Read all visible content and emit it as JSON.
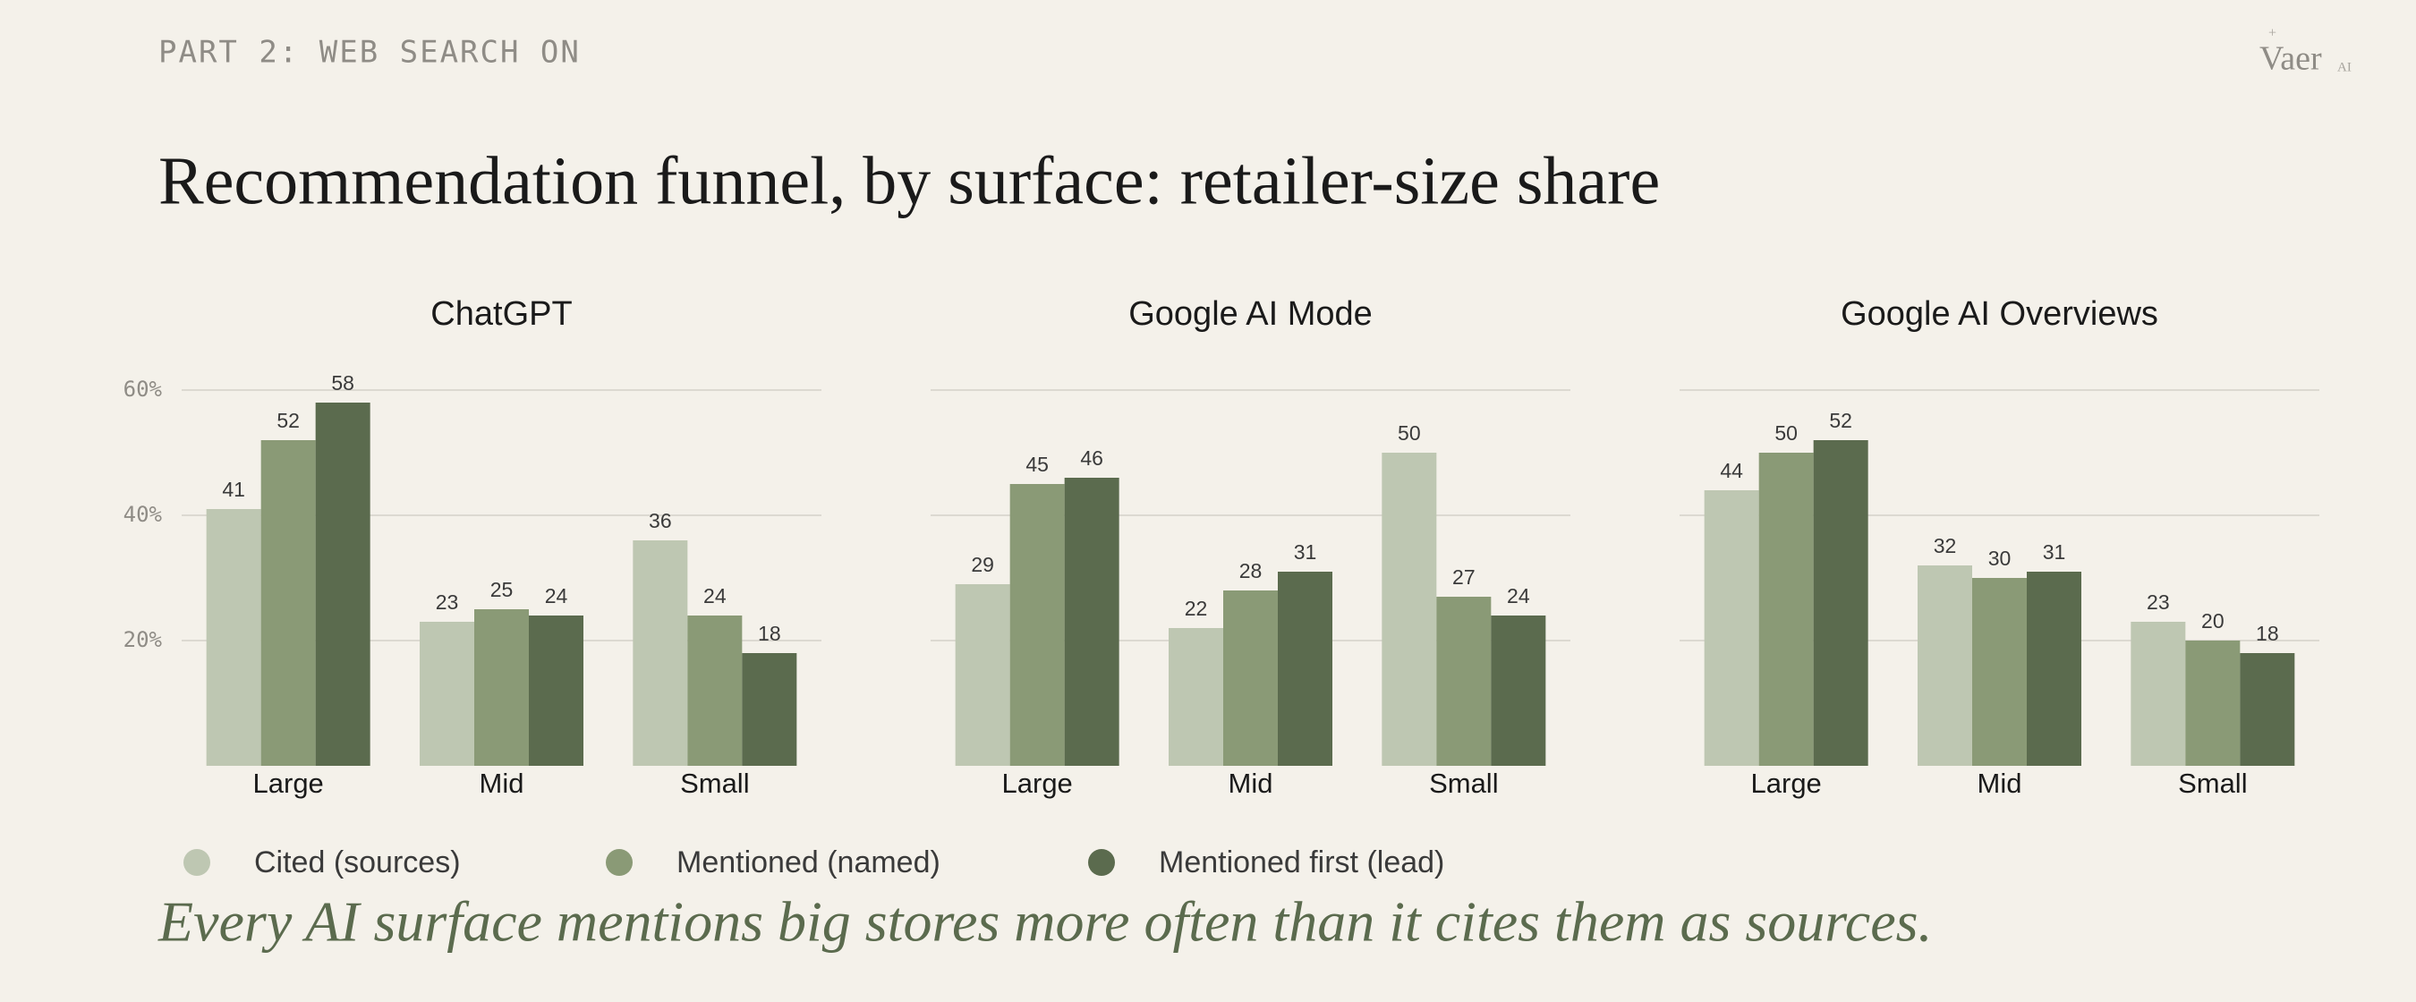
{
  "header": {
    "label": "PART 2: WEB SEARCH ON",
    "logo": "Vaer",
    "logo_suffix": "AI"
  },
  "title": "Recommendation funnel, by surface: retailer-size share",
  "legend": [
    {
      "name": "Cited (sources)",
      "color": "#bec7b2"
    },
    {
      "name": "Mentioned (named)",
      "color": "#8a9a76"
    },
    {
      "name": "Mentioned first (lead)",
      "color": "#5b6b4e"
    }
  ],
  "chart_data": [
    {
      "type": "bar",
      "title": "ChatGPT",
      "categories": [
        "Large",
        "Mid",
        "Small"
      ],
      "series": [
        {
          "values": [
            41,
            23,
            36
          ]
        },
        {
          "values": [
            52,
            25,
            24
          ]
        },
        {
          "values": [
            58,
            24,
            18
          ]
        }
      ],
      "ylim": [
        0,
        60
      ],
      "yticks": [
        {
          "value": 20,
          "label": "20%"
        },
        {
          "value": 40,
          "label": "40%"
        },
        {
          "value": 60,
          "label": "60%"
        }
      ],
      "grid": true
    },
    {
      "type": "bar",
      "title": "Google AI Mode",
      "categories": [
        "Large",
        "Mid",
        "Small"
      ],
      "series": [
        {
          "values": [
            29,
            22,
            50
          ]
        },
        {
          "values": [
            45,
            28,
            27
          ]
        },
        {
          "values": [
            46,
            31,
            24
          ]
        }
      ],
      "ylim": [
        0,
        60
      ],
      "yticks": [
        20,
        40,
        60
      ],
      "grid": true
    },
    {
      "type": "bar",
      "title": "Google AI Overviews",
      "categories": [
        "Large",
        "Mid",
        "Small"
      ],
      "series": [
        {
          "values": [
            44,
            32,
            23
          ]
        },
        {
          "values": [
            50,
            30,
            20
          ]
        },
        {
          "values": [
            52,
            31,
            18
          ]
        }
      ],
      "ylim": [
        0,
        60
      ],
      "yticks": [
        20,
        40,
        60
      ],
      "grid": true
    }
  ],
  "caption": "Every AI surface mentions big stores more often than it cites them as sources."
}
